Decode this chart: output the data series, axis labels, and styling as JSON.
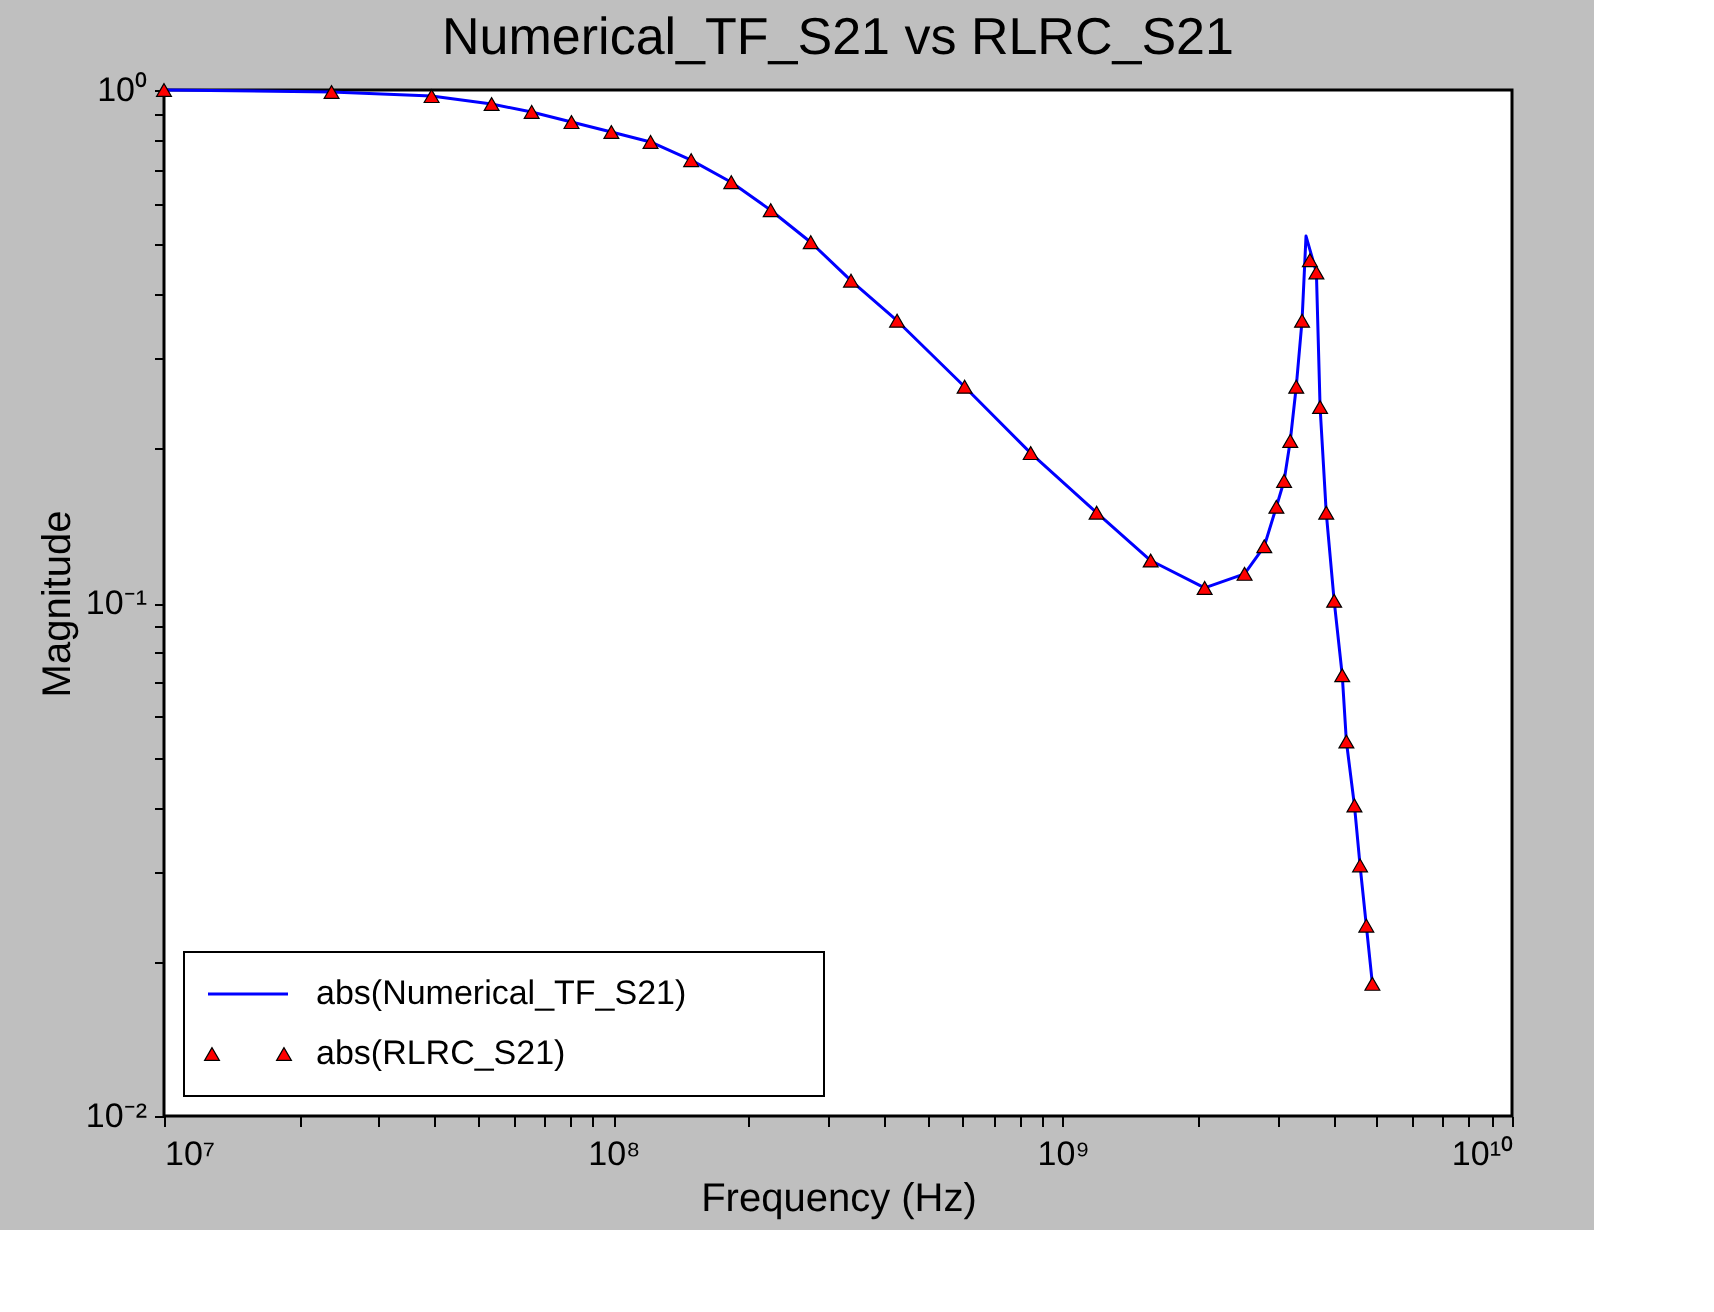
{
  "chart_data": {
    "type": "line",
    "title": "Numerical_TF_S21 vs RLRC_S21",
    "xlabel": "Frequency (Hz)",
    "ylabel": "Magnitude",
    "log": "xy",
    "grid": false,
    "legend": "bottom left",
    "xlim": [
      10000000.0,
      10000000000.0
    ],
    "ylim": [
      0.01,
      1
    ],
    "xticks": [
      {
        "value": 10000000.0,
        "label": "10⁷"
      },
      {
        "value": 20000000.0,
        "label": null
      },
      {
        "value": 30000000.0,
        "label": null
      },
      {
        "value": 40000000.0,
        "label": null
      },
      {
        "value": 50000000.0,
        "label": null
      },
      {
        "value": 60000000.0,
        "label": null
      },
      {
        "value": 70000000.0,
        "label": null
      },
      {
        "value": 80000000.0,
        "label": null
      },
      {
        "value": 90000000.0,
        "label": null
      },
      {
        "value": 100000000.0,
        "label": "10⁸"
      },
      {
        "value": 200000000.0,
        "label": null
      },
      {
        "value": 300000000.0,
        "label": null
      },
      {
        "value": 400000000.0,
        "label": null
      },
      {
        "value": 500000000.0,
        "label": null
      },
      {
        "value": 600000000.0,
        "label": null
      },
      {
        "value": 700000000.0,
        "label": null
      },
      {
        "value": 800000000.0,
        "label": null
      },
      {
        "value": 900000000.0,
        "label": null
      },
      {
        "value": 1000000000.0,
        "label": "10⁹"
      },
      {
        "value": 2000000000.0,
        "label": null
      },
      {
        "value": 3000000000.0,
        "label": null
      },
      {
        "value": 4000000000.0,
        "label": null
      },
      {
        "value": 5000000000.0,
        "label": null
      },
      {
        "value": 6000000000.0,
        "label": null
      },
      {
        "value": 7000000000.0,
        "label": null
      },
      {
        "value": 8000000000.0,
        "label": null
      },
      {
        "value": 9000000000.0,
        "label": null
      },
      {
        "value": 10000000000.0,
        "label": "10¹⁰"
      }
    ],
    "yticks": [
      {
        "value": 0.01,
        "label": "10⁻²"
      },
      {
        "value": 0.02,
        "label": null
      },
      {
        "value": 0.03,
        "label": null
      },
      {
        "value": 0.04,
        "label": null
      },
      {
        "value": 0.05,
        "label": null
      },
      {
        "value": 0.06,
        "label": null
      },
      {
        "value": 0.07,
        "label": null
      },
      {
        "value": 0.08,
        "label": null
      },
      {
        "value": 0.09,
        "label": null
      },
      {
        "value": 0.1,
        "label": "10⁻¹"
      },
      {
        "value": 0.2,
        "label": null
      },
      {
        "value": 0.3,
        "label": null
      },
      {
        "value": 0.4,
        "label": null
      },
      {
        "value": 0.5,
        "label": null
      },
      {
        "value": 0.6,
        "label": null
      },
      {
        "value": 0.7,
        "label": null
      },
      {
        "value": 0.8,
        "label": null
      },
      {
        "value": 0.9,
        "label": null
      },
      {
        "value": 1,
        "label": "10⁰"
      }
    ],
    "series": [
      {
        "name": "abs(Numerical_TF_S21)",
        "color": "#0000ff",
        "marker": "none",
        "line_style": "solid",
        "x": [
          10000000.0,
          23600000.0,
          39400000.0,
          53600000.0,
          65800000.0,
          80700000.0,
          99000000.0,
          121000000.0,
          149000000.0,
          183000000.0,
          224000000.0,
          275000000.0,
          338000000.0,
          428000000.0,
          605000000.0,
          849000000.0,
          1190000000.0,
          1570000000.0,
          2070000000.0,
          2540000000.0,
          2810000000.0,
          2990000000.0,
          3110000000.0,
          3210000000.0,
          3310000000.0,
          3410000000.0,
          3480000000.0,
          3670000000.0,
          3740000000.0,
          3860000000.0,
          4020000000.0,
          4190000000.0,
          4280000000.0,
          4460000000.0,
          4590000000.0,
          4740000000.0,
          4890000000.0
        ],
        "values": [
          1.0,
          0.991,
          0.973,
          0.939,
          0.906,
          0.866,
          0.828,
          0.792,
          0.73,
          0.661,
          0.583,
          0.505,
          0.425,
          0.355,
          0.264,
          0.196,
          0.15,
          0.121,
          0.107,
          0.114,
          0.129,
          0.154,
          0.173,
          0.207,
          0.264,
          0.355,
          0.519,
          0.441,
          0.241,
          0.15,
          0.101,
          0.0723,
          0.0537,
          0.0403,
          0.0308,
          0.0235,
          0.0181
        ]
      },
      {
        "name": "abs(RLRC_S21)",
        "type": "scatter",
        "color": "#ff0000",
        "marker": "triangle",
        "x": [
          10000000.0,
          23600000.0,
          39400000.0,
          53600000.0,
          65800000.0,
          80700000.0,
          99000000.0,
          121000000.0,
          149000000.0,
          183000000.0,
          224000000.0,
          275000000.0,
          338000000.0,
          428000000.0,
          605000000.0,
          849000000.0,
          1190000000.0,
          1570000000.0,
          2070000000.0,
          2540000000.0,
          2810000000.0,
          2990000000.0,
          3110000000.0,
          3210000000.0,
          3310000000.0,
          3410000000.0,
          3550000000.0,
          3670000000.0,
          3740000000.0,
          3860000000.0,
          4020000000.0,
          4190000000.0,
          4280000000.0,
          4460000000.0,
          4590000000.0,
          4740000000.0,
          4890000000.0
        ],
        "values": [
          1.0,
          0.991,
          0.973,
          0.939,
          0.906,
          0.866,
          0.828,
          0.792,
          0.73,
          0.661,
          0.583,
          0.505,
          0.425,
          0.355,
          0.264,
          0.196,
          0.15,
          0.121,
          0.107,
          0.114,
          0.129,
          0.154,
          0.173,
          0.207,
          0.264,
          0.355,
          0.466,
          0.441,
          0.241,
          0.15,
          0.101,
          0.0723,
          0.0537,
          0.0403,
          0.0308,
          0.0235,
          0.0181
        ]
      }
    ]
  }
}
